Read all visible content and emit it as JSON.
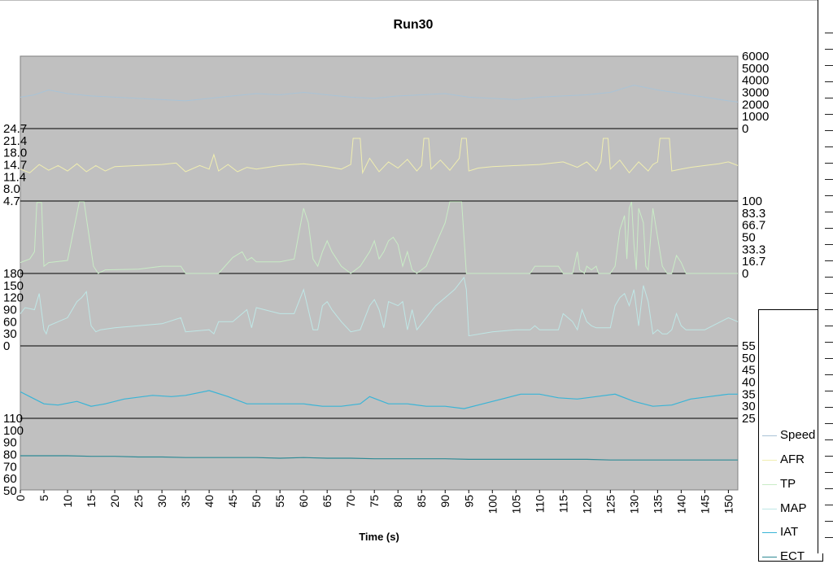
{
  "chart_data": {
    "type": "line",
    "title": "Run30",
    "xlabel": "Time (s)",
    "xlim": [
      0,
      152
    ],
    "x_ticks": [
      "0",
      "5",
      "10",
      "15",
      "20",
      "25",
      "30",
      "35",
      "40",
      "45",
      "50",
      "55",
      "60",
      "65",
      "70",
      "75",
      "80",
      "85",
      "90",
      "95",
      "100",
      "105",
      "110",
      "115",
      "120",
      "125",
      "130",
      "135",
      "140",
      "145",
      "150"
    ],
    "grid": false,
    "legend_position": "right",
    "legend": [
      "Speed",
      "AFR",
      "TP",
      "MAP",
      "IAT",
      "ECT"
    ],
    "colors": {
      "plot_background": "#c0c0c0",
      "Speed": "#a9c3d6",
      "AFR": "#f0eeb0",
      "TP": "#c9ecc6",
      "MAP": "#bfe7e6",
      "IAT": "#39b4d6",
      "ECT": "#2e8a95"
    },
    "bands": [
      {
        "series": "Speed",
        "axis_side": "right",
        "ylim": [
          0,
          6000
        ],
        "tick_labels": [
          "6000",
          "5000",
          "4000",
          "3000",
          "2000",
          "1000",
          "0"
        ],
        "x": [
          0,
          3,
          6,
          10,
          15,
          20,
          25,
          30,
          35,
          40,
          45,
          50,
          55,
          60,
          65,
          70,
          75,
          80,
          85,
          90,
          95,
          100,
          105,
          110,
          115,
          120,
          125,
          130,
          135,
          140,
          145,
          150,
          152
        ],
        "values": [
          2600,
          2800,
          3200,
          2900,
          2700,
          2600,
          2500,
          2400,
          2300,
          2500,
          2700,
          2900,
          2800,
          3000,
          2800,
          2600,
          2500,
          2700,
          2800,
          2900,
          2600,
          2500,
          2400,
          2600,
          2700,
          2800,
          3000,
          3600,
          3200,
          2900,
          2600,
          2300,
          2200
        ]
      },
      {
        "series": "AFR",
        "axis_side": "left",
        "ylim": [
          4.7,
          24.7
        ],
        "tick_labels": [
          "24.7",
          "21.4",
          "18.0",
          "14.7",
          "11.4",
          "8.0",
          "4.7"
        ],
        "x": [
          0,
          2,
          4,
          6,
          8,
          10,
          12,
          14,
          16,
          18,
          20,
          25,
          30,
          33,
          35,
          38,
          40,
          41,
          42,
          44,
          46,
          48,
          50,
          55,
          60,
          65,
          68,
          70,
          70.5,
          72,
          72.5,
          74,
          76,
          78,
          80,
          82,
          84,
          85,
          85.5,
          86.5,
          87,
          89,
          91,
          93,
          93.5,
          94.5,
          95,
          97,
          100,
          105,
          110,
          115,
          118,
          120,
          122,
          123,
          123.5,
          124.5,
          125,
          127,
          129,
          131,
          133,
          134,
          135,
          135.5,
          137.5,
          138,
          140,
          142,
          145,
          148,
          150,
          152
        ],
        "values": [
          13.5,
          12.5,
          14.8,
          13.2,
          14.5,
          13.0,
          15.0,
          12.8,
          14.5,
          13.0,
          14.2,
          14.5,
          14.8,
          15.2,
          12.8,
          14.5,
          13.5,
          17.5,
          13.0,
          14.8,
          12.8,
          14.0,
          13.5,
          14.5,
          15.0,
          14.2,
          13.5,
          14.8,
          22.0,
          22.0,
          12.5,
          16.5,
          12.8,
          15.5,
          13.8,
          16.2,
          13.0,
          14.5,
          22.0,
          22.0,
          13.5,
          16.0,
          13.2,
          16.5,
          22.0,
          22.0,
          13.0,
          13.8,
          14.2,
          14.5,
          14.8,
          15.5,
          14.0,
          15.5,
          13.0,
          15.5,
          22.0,
          22.0,
          13.5,
          16.0,
          12.5,
          15.5,
          13.0,
          14.8,
          15.5,
          22.0,
          22.0,
          13.0,
          13.5,
          14.0,
          14.5,
          15.0,
          15.5,
          14.5
        ]
      },
      {
        "series": "TP",
        "axis_side": "right",
        "ylim": [
          0,
          100
        ],
        "tick_labels": [
          "100",
          "83.3",
          "66.7",
          "50",
          "33.3",
          "16.7",
          "0"
        ],
        "x": [
          0,
          2,
          3,
          3.5,
          4.5,
          5,
          6,
          10,
          12.5,
          13.5,
          15.5,
          16.5,
          18,
          25,
          30,
          34,
          35,
          42,
          45,
          47,
          48,
          49,
          50,
          55,
          58,
          60,
          61,
          62,
          63,
          64,
          65,
          66,
          68,
          70,
          72,
          74,
          75,
          76,
          77,
          78,
          79,
          80,
          81,
          82,
          83,
          84,
          86,
          88,
          90,
          91,
          91.5,
          93.5,
          94.5,
          95,
          100,
          108,
          109,
          114,
          115,
          117,
          118,
          118.5,
          119.5,
          120,
          121,
          122,
          122.5,
          125,
          126,
          127,
          128,
          128.5,
          129,
          129.5,
          130,
          130.5,
          131,
          132,
          132.5,
          133,
          134,
          136,
          137,
          138,
          139,
          140,
          141,
          145,
          150,
          152
        ],
        "values": [
          15,
          20,
          30,
          98,
          98,
          10,
          15,
          18,
          99,
          99,
          10,
          0,
          5,
          6,
          10,
          10,
          0,
          0,
          22,
          30,
          18,
          22,
          16,
          16,
          20,
          90,
          70,
          20,
          10,
          30,
          45,
          30,
          10,
          0,
          10,
          30,
          45,
          20,
          30,
          45,
          50,
          40,
          10,
          30,
          5,
          0,
          10,
          40,
          70,
          99,
          99,
          99,
          0,
          0,
          0,
          0,
          10,
          10,
          0,
          0,
          30,
          5,
          0,
          10,
          5,
          10,
          0,
          0,
          10,
          60,
          80,
          20,
          90,
          99,
          40,
          5,
          90,
          70,
          10,
          5,
          90,
          10,
          0,
          0,
          25,
          15,
          0,
          0,
          0,
          0
        ]
      },
      {
        "series": "MAP",
        "axis_side": "left",
        "ylim": [
          0,
          180
        ],
        "tick_labels": [
          "180",
          "150",
          "120",
          "90",
          "60",
          "30",
          "0"
        ],
        "x": [
          0,
          1,
          3,
          4,
          5,
          5.5,
          6,
          8,
          10,
          12,
          13,
          14,
          15,
          16,
          17,
          20,
          25,
          30,
          34,
          35,
          40,
          41,
          42,
          45,
          48,
          49,
          50,
          55,
          58,
          60,
          61,
          62,
          63,
          64,
          65,
          66,
          68,
          70,
          72,
          74,
          75,
          76,
          77,
          78,
          80,
          81,
          82,
          83,
          84,
          86,
          88,
          90,
          92,
          94,
          94.5,
          95,
          100,
          105,
          108,
          109,
          110,
          114,
          115,
          117,
          118,
          119,
          120,
          121,
          122,
          125,
          126,
          127,
          128,
          129,
          130,
          131,
          132,
          133,
          134,
          135,
          136,
          137,
          138,
          139,
          140,
          141,
          145,
          150,
          152
        ],
        "values": [
          80,
          95,
          90,
          130,
          40,
          30,
          50,
          60,
          70,
          110,
          120,
          135,
          50,
          35,
          40,
          45,
          50,
          55,
          70,
          35,
          40,
          30,
          60,
          60,
          90,
          45,
          95,
          80,
          80,
          140,
          90,
          40,
          40,
          100,
          110,
          90,
          60,
          35,
          40,
          100,
          115,
          90,
          45,
          110,
          100,
          110,
          40,
          90,
          40,
          70,
          100,
          120,
          140,
          170,
          140,
          25,
          35,
          40,
          40,
          50,
          40,
          40,
          80,
          60,
          40,
          90,
          60,
          50,
          45,
          45,
          100,
          120,
          130,
          100,
          140,
          50,
          150,
          110,
          30,
          40,
          30,
          30,
          40,
          80,
          50,
          40,
          40,
          70,
          60
        ]
      },
      {
        "series": "IAT",
        "axis_side": "right",
        "ylim": [
          25,
          55
        ],
        "tick_labels": [
          "55",
          "50",
          "45",
          "40",
          "35",
          "30",
          "25"
        ],
        "x": [
          0,
          2,
          5,
          8,
          12,
          15,
          18,
          22,
          28,
          32,
          35,
          40,
          44,
          48,
          52,
          56,
          60,
          64,
          68,
          72,
          74,
          78,
          82,
          86,
          90,
          94,
          98,
          102,
          106,
          110,
          114,
          118,
          122,
          126,
          130,
          134,
          138,
          142,
          146,
          150,
          152
        ],
        "values": [
          36,
          34,
          31,
          30.5,
          32,
          30,
          31,
          33,
          34.5,
          34,
          34.5,
          36.5,
          34,
          31,
          31,
          31,
          31,
          30,
          30,
          31,
          34,
          31,
          31,
          30,
          30,
          29,
          31,
          33,
          35,
          35,
          33.5,
          33,
          34,
          35,
          32,
          30,
          30.5,
          33,
          34,
          35,
          35
        ]
      },
      {
        "series": "ECT",
        "axis_side": "left",
        "ylim": [
          50,
          110
        ],
        "tick_labels": [
          "110",
          "100",
          "90",
          "80",
          "70",
          "60",
          "50"
        ],
        "x": [
          0,
          5,
          10,
          15,
          20,
          25,
          30,
          35,
          40,
          45,
          50,
          55,
          60,
          65,
          70,
          75,
          80,
          85,
          90,
          95,
          100,
          105,
          110,
          115,
          120,
          125,
          130,
          135,
          140,
          145,
          150,
          152
        ],
        "values": [
          79,
          79,
          79,
          78.5,
          78.5,
          78,
          78,
          77.5,
          77.5,
          77.5,
          77.5,
          77,
          77.5,
          77,
          77,
          76.5,
          76.5,
          76.5,
          76.5,
          76,
          76,
          76,
          76,
          76,
          76,
          75.5,
          75.5,
          75.5,
          75.5,
          75.5,
          75.5,
          75.5
        ]
      }
    ]
  }
}
